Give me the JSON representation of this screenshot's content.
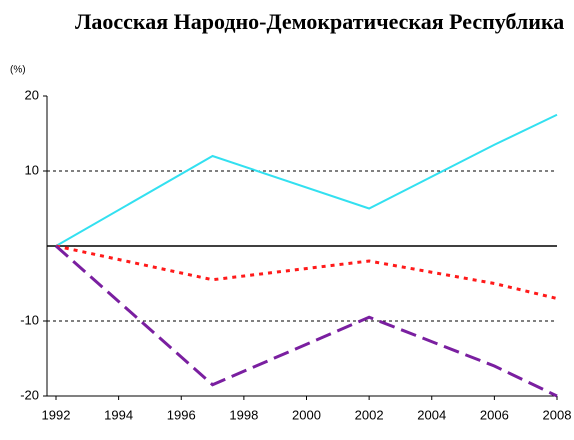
{
  "chart_data": {
    "type": "line",
    "title": "Лаосская Народно-Демократическая Республика",
    "y_unit": "(%)",
    "x": [
      1992,
      1997,
      2002,
      2006,
      2008
    ],
    "series": [
      {
        "color": "#33e0f0",
        "line_style": "solid",
        "values": [
          0,
          12,
          5,
          13.5,
          17.5
        ]
      },
      {
        "color": "#ff1a1a",
        "line_style": "dotted",
        "values": [
          0,
          -4.5,
          -2,
          -5,
          -7
        ]
      },
      {
        "color": "#7a1fa0",
        "line_style": "dashed",
        "values": [
          0,
          -18.5,
          -9.5,
          -16,
          -20
        ]
      }
    ],
    "xlim": [
      1992,
      2008
    ],
    "xticks": [
      1992,
      1994,
      1996,
      1998,
      2000,
      2002,
      2004,
      2006,
      2008
    ],
    "ylim": [
      -20,
      20
    ],
    "yticks": [
      -20,
      -10,
      10,
      20
    ],
    "grid": true
  }
}
